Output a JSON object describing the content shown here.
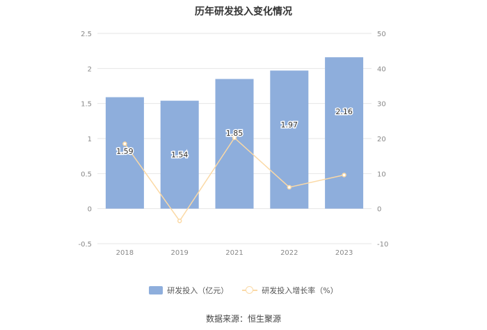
{
  "chart_data": {
    "type": "bar",
    "title": "历年研发投入变化情况",
    "categories": [
      "2018",
      "2019",
      "2021",
      "2022",
      "2023"
    ],
    "series": [
      {
        "name": "研发投入（亿元）",
        "type": "bar",
        "axis": "left",
        "values": [
          1.59,
          1.54,
          1.85,
          1.97,
          2.16
        ],
        "labels": [
          "1.59",
          "1.54",
          "1.85",
          "1.97",
          "2.16"
        ]
      },
      {
        "name": "研发投入增长率（%）",
        "type": "line",
        "axis": "right",
        "values": [
          18.5,
          -3.5,
          20.2,
          6.1,
          9.6
        ]
      }
    ],
    "y_left": {
      "min": -0.5,
      "max": 2.5,
      "ticks": [
        "-0.5",
        "0",
        "0.5",
        "1",
        "1.5",
        "2",
        "2.5"
      ]
    },
    "y_right": {
      "min": -10,
      "max": 50,
      "ticks": [
        "-10",
        "0",
        "10",
        "20",
        "30",
        "40",
        "50"
      ]
    },
    "grid": true,
    "legend_position": "bottom"
  },
  "colors": {
    "bar": "#8eaedc",
    "line": "#fbd9a5",
    "grid": "#e6e6e6",
    "axis_text": "#888888"
  },
  "source": "数据来源：恒生聚源"
}
